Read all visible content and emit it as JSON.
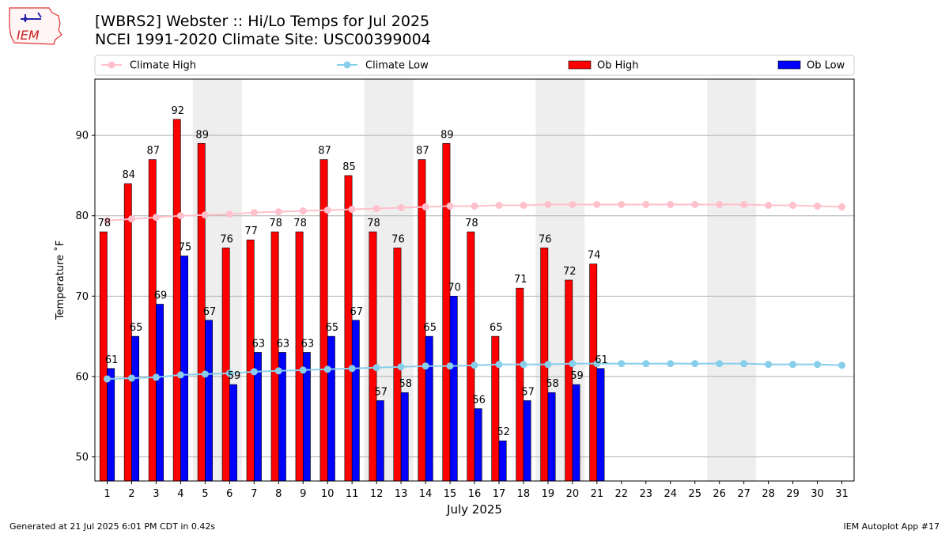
{
  "header": {
    "title_line1": "[WBRS2] Webster :: Hi/Lo Temps for Jul 2025",
    "title_line2": "NCEI 1991-2020 Climate Site: USC00399004",
    "logo_text": "IEM"
  },
  "footer": {
    "generated": "Generated at 21 Jul 2025 6:01 PM CDT in 0.42s",
    "app": "IEM Autoplot App #17"
  },
  "colors": {
    "ob_high": "#ff0000",
    "ob_low": "#0000ff",
    "climate_high": "#ffc0cb",
    "climate_low": "#87ceeb",
    "weekend_shade": "#eeeeee"
  },
  "chart_data": {
    "type": "bar",
    "xlabel": "July 2025",
    "ylabel": "Temperature $^\\circ$F",
    "ylabel_display": "Temperature ˚F",
    "ylim": [
      47,
      97
    ],
    "yticks": [
      50,
      60,
      70,
      80,
      90
    ],
    "grid": "horizontal",
    "legend_placement": "top",
    "days": [
      1,
      2,
      3,
      4,
      5,
      6,
      7,
      8,
      9,
      10,
      11,
      12,
      13,
      14,
      15,
      16,
      17,
      18,
      19,
      20,
      21,
      22,
      23,
      24,
      25,
      26,
      27,
      28,
      29,
      30,
      31
    ],
    "shaded_days": [
      [
        5,
        6
      ],
      [
        12,
        13
      ],
      [
        19,
        20
      ],
      [
        26,
        27
      ]
    ],
    "series": [
      {
        "name": "Climate High",
        "kind": "line",
        "values": [
          79.4,
          79.6,
          79.8,
          80.0,
          80.1,
          80.2,
          80.4,
          80.5,
          80.6,
          80.7,
          80.8,
          80.9,
          81.0,
          81.1,
          81.2,
          81.2,
          81.3,
          81.3,
          81.4,
          81.4,
          81.4,
          81.4,
          81.4,
          81.4,
          81.4,
          81.4,
          81.4,
          81.3,
          81.3,
          81.2,
          81.1
        ]
      },
      {
        "name": "Climate Low",
        "kind": "line",
        "values": [
          59.7,
          59.8,
          59.9,
          60.2,
          60.3,
          60.4,
          60.6,
          60.7,
          60.8,
          60.9,
          61.0,
          61.1,
          61.2,
          61.3,
          61.3,
          61.4,
          61.5,
          61.5,
          61.5,
          61.6,
          61.6,
          61.6,
          61.6,
          61.6,
          61.6,
          61.6,
          61.6,
          61.5,
          61.5,
          61.5,
          61.4
        ]
      },
      {
        "name": "Ob High",
        "kind": "bar",
        "values": [
          78,
          84,
          87,
          92,
          89,
          76,
          77,
          78,
          78,
          87,
          85,
          78,
          76,
          87,
          89,
          78,
          65,
          71,
          76,
          72,
          74
        ]
      },
      {
        "name": "Ob Low",
        "kind": "bar",
        "values": [
          61,
          65,
          69,
          75,
          67,
          59,
          63,
          63,
          63,
          65,
          67,
          57,
          58,
          65,
          70,
          56,
          52,
          57,
          58,
          59,
          61
        ]
      }
    ]
  }
}
